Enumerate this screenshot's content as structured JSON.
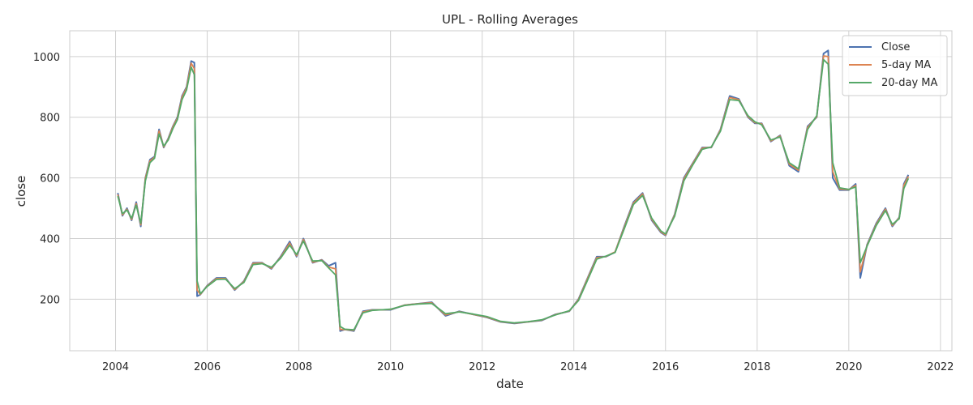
{
  "chart_data": {
    "type": "line",
    "title": "UPL - Rolling Averages",
    "xlabel": "date",
    "ylabel": "close",
    "x_range": [
      2003.0,
      2022.25
    ],
    "ylim": [
      30,
      1085
    ],
    "x_ticks": [
      2004,
      2006,
      2008,
      2010,
      2012,
      2014,
      2016,
      2018,
      2020,
      2022
    ],
    "y_ticks": [
      200,
      400,
      600,
      800,
      1000
    ],
    "grid": true,
    "legend_position": "top-right",
    "x": [
      2004.05,
      2004.15,
      2004.25,
      2004.35,
      2004.45,
      2004.55,
      2004.65,
      2004.75,
      2004.85,
      2004.95,
      2005.05,
      2005.15,
      2005.25,
      2005.35,
      2005.45,
      2005.55,
      2005.65,
      2005.72,
      2005.78,
      2005.85,
      2006.0,
      2006.2,
      2006.4,
      2006.6,
      2006.8,
      2007.0,
      2007.2,
      2007.4,
      2007.6,
      2007.8,
      2007.95,
      2008.1,
      2008.3,
      2008.5,
      2008.65,
      2008.8,
      2008.9,
      2009.0,
      2009.2,
      2009.4,
      2009.6,
      2009.8,
      2010.0,
      2010.3,
      2010.6,
      2010.9,
      2011.2,
      2011.5,
      2011.8,
      2012.1,
      2012.4,
      2012.7,
      2013.0,
      2013.3,
      2013.6,
      2013.9,
      2014.1,
      2014.3,
      2014.5,
      2014.7,
      2014.9,
      2015.1,
      2015.3,
      2015.5,
      2015.7,
      2015.9,
      2016.0,
      2016.2,
      2016.4,
      2016.6,
      2016.8,
      2017.0,
      2017.2,
      2017.4,
      2017.6,
      2017.8,
      2017.95,
      2018.1,
      2018.3,
      2018.5,
      2018.7,
      2018.9,
      2019.1,
      2019.3,
      2019.45,
      2019.55,
      2019.65,
      2019.8,
      2020.0,
      2020.15,
      2020.25,
      2020.4,
      2020.6,
      2020.8,
      2020.95,
      2021.1,
      2021.2,
      2021.3
    ],
    "series": [
      {
        "name": "Close",
        "color": "#4c72b0",
        "values": [
          550,
          475,
          500,
          460,
          520,
          440,
          600,
          660,
          670,
          760,
          700,
          730,
          770,
          800,
          870,
          900,
          985,
          980,
          210,
          215,
          245,
          270,
          270,
          230,
          260,
          320,
          320,
          300,
          340,
          390,
          340,
          400,
          320,
          330,
          310,
          320,
          95,
          100,
          95,
          160,
          165,
          165,
          165,
          180,
          185,
          190,
          145,
          160,
          150,
          140,
          125,
          120,
          125,
          130,
          150,
          160,
          200,
          270,
          340,
          340,
          355,
          440,
          520,
          550,
          460,
          420,
          410,
          480,
          600,
          650,
          700,
          700,
          760,
          870,
          860,
          800,
          780,
          780,
          720,
          740,
          640,
          620,
          770,
          800,
          1010,
          1020,
          600,
          560,
          560,
          580,
          270,
          380,
          450,
          500,
          440,
          470,
          580,
          610
        ]
      },
      {
        "name": "5-day MA",
        "color": "#dd8452",
        "values": [
          545,
          478,
          497,
          463,
          515,
          445,
          598,
          656,
          668,
          755,
          702,
          728,
          768,
          797,
          866,
          897,
          978,
          960,
          230,
          216,
          244,
          268,
          268,
          232,
          258,
          318,
          319,
          302,
          338,
          385,
          343,
          397,
          322,
          329,
          306,
          300,
          100,
          100,
          97,
          158,
          164,
          165,
          166,
          180,
          185,
          188,
          148,
          159,
          150,
          141,
          126,
          121,
          125,
          131,
          149,
          161,
          198,
          268,
          337,
          341,
          356,
          437,
          517,
          547,
          463,
          422,
          412,
          478,
          596,
          648,
          698,
          701,
          758,
          865,
          858,
          802,
          782,
          778,
          722,
          738,
          645,
          625,
          766,
          802,
          1002,
          1000,
          620,
          563,
          561,
          575,
          290,
          378,
          447,
          497,
          443,
          468,
          575,
          605
        ]
      },
      {
        "name": "20-day MA",
        "color": "#55a868",
        "values": [
          540,
          482,
          494,
          467,
          510,
          450,
          590,
          650,
          665,
          745,
          705,
          725,
          762,
          792,
          858,
          890,
          965,
          940,
          260,
          218,
          242,
          265,
          266,
          235,
          255,
          314,
          317,
          305,
          335,
          378,
          347,
          392,
          326,
          327,
          303,
          280,
          110,
          101,
          99,
          155,
          163,
          165,
          167,
          179,
          184,
          186,
          152,
          158,
          151,
          143,
          127,
          122,
          126,
          132,
          148,
          162,
          195,
          263,
          332,
          342,
          354,
          432,
          512,
          542,
          467,
          425,
          415,
          474,
          590,
          644,
          694,
          702,
          754,
          858,
          855,
          805,
          785,
          775,
          725,
          735,
          650,
          630,
          760,
          805,
          990,
          975,
          650,
          567,
          562,
          570,
          320,
          375,
          443,
          492,
          447,
          465,
          565,
          598
        ]
      }
    ]
  }
}
